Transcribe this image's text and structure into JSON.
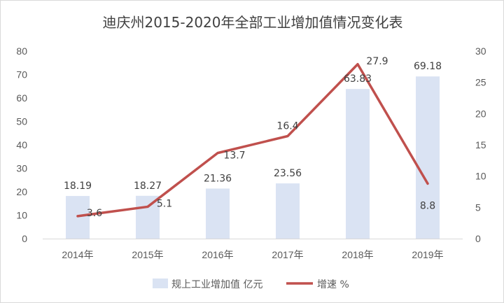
{
  "chart_data": {
    "type": "bar+line",
    "title": "迪庆州2015-2020年全部工业增加值情况变化表",
    "categories": [
      "2014年",
      "2015年",
      "2016年",
      "2017年",
      "2018年",
      "2019年"
    ],
    "series": [
      {
        "name": "规上工业增加值 亿元",
        "type": "bar",
        "axis": "left",
        "color": "#dae3f3",
        "values": [
          18.19,
          18.27,
          21.36,
          23.56,
          63.83,
          69.18
        ],
        "labels": [
          "18.19",
          "18.27",
          "21.36",
          "23.56",
          "63.83",
          "69.18"
        ]
      },
      {
        "name": "增速 %",
        "type": "line",
        "axis": "right",
        "color": "#c0504d",
        "values": [
          3.6,
          5.1,
          13.7,
          16.4,
          27.9,
          8.8
        ],
        "labels": [
          "3.6",
          "5.1",
          "13.7",
          "16.4",
          "27.9",
          "8.8"
        ]
      }
    ],
    "y_left": {
      "min": 0,
      "max": 80,
      "ticks": [
        "0",
        "10",
        "20",
        "30",
        "40",
        "50",
        "60",
        "70",
        "80"
      ]
    },
    "y_right": {
      "min": 0,
      "max": 30,
      "ticks": [
        "0",
        "5",
        "10",
        "15",
        "20",
        "25",
        "30"
      ]
    },
    "grid": false,
    "legend": "bottom"
  }
}
